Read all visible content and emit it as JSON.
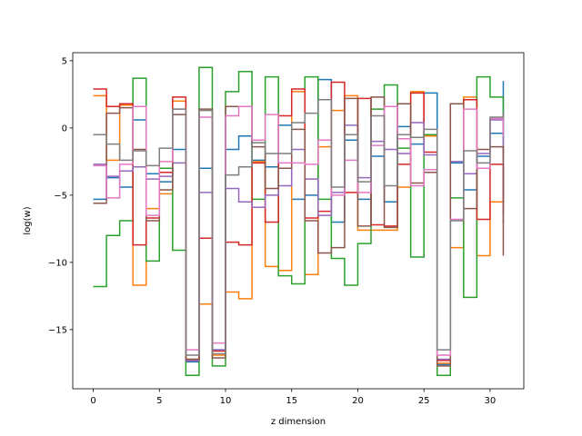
{
  "chart_data": {
    "type": "line",
    "step": "post",
    "title": "",
    "xlabel": "z dimension",
    "ylabel": "log(w)",
    "xlim": [
      -1.55,
      32.55
    ],
    "ylim": [
      -19.4,
      5.6
    ],
    "xticks": [
      0,
      5,
      10,
      15,
      20,
      25,
      30
    ],
    "yticks": [
      5,
      0,
      -5,
      -10,
      -15
    ],
    "ytick_labels": [
      "5",
      "0",
      "−5",
      "−10",
      "−15"
    ],
    "grid": false,
    "legend": "none",
    "x": [
      0,
      1,
      2,
      3,
      4,
      5,
      6,
      7,
      8,
      9,
      10,
      11,
      12,
      13,
      14,
      15,
      16,
      17,
      18,
      19,
      20,
      21,
      22,
      23,
      24,
      25,
      26,
      27,
      28,
      29,
      30,
      31
    ],
    "series": [
      {
        "color": "#1f77b4",
        "values": [
          -5.3,
          -3.7,
          -4.4,
          0.6,
          -3.4,
          -4.0,
          -1.6,
          -17.4,
          -3.0,
          -16.5,
          -1.6,
          -0.6,
          -2.4,
          -2.9,
          0.2,
          -5.3,
          -5.0,
          3.6,
          -7.0,
          -0.9,
          -5.3,
          -2.1,
          -5.5,
          0.1,
          -1.2,
          2.6,
          -17.6,
          -2.6,
          -4.6,
          -2.1,
          -0.4,
          3.5
        ]
      },
      {
        "color": "#ff7f0e",
        "values": [
          2.4,
          -2.4,
          1.7,
          -11.7,
          -6.0,
          -4.9,
          2.0,
          -17.2,
          -13.1,
          -16.9,
          -12.2,
          -12.7,
          -2.5,
          -10.3,
          -10.6,
          2.7,
          -10.9,
          -1.4,
          1.3,
          2.4,
          -7.6,
          -7.6,
          -7.6,
          -4.4,
          2.7,
          -0.6,
          -17.5,
          -8.9,
          2.3,
          -9.5,
          -5.5,
          -2.9
        ]
      },
      {
        "color": "#2ca02c",
        "values": [
          -11.8,
          -8.0,
          -6.9,
          3.7,
          -9.9,
          -3.0,
          -9.1,
          -18.4,
          4.5,
          -17.7,
          2.7,
          4.2,
          -5.3,
          3.8,
          -11.0,
          -11.6,
          3.8,
          -5.3,
          -9.7,
          -11.7,
          -8.6,
          1.4,
          3.2,
          -1.5,
          -9.6,
          -0.5,
          -18.4,
          -5.2,
          -12.6,
          3.8,
          2.3,
          -1.9
        ]
      },
      {
        "color": "#d62728",
        "values": [
          2.9,
          1.6,
          1.8,
          -8.7,
          -6.7,
          -3.3,
          2.3,
          -17.3,
          -8.2,
          -16.6,
          -8.5,
          -8.7,
          -2.6,
          -7.0,
          0.9,
          2.9,
          -6.7,
          -6.2,
          3.4,
          -4.8,
          2.2,
          -7.2,
          -7.3,
          -2.7,
          2.6,
          -1.8,
          -17.3,
          1.8,
          2.1,
          -6.8,
          -2.7,
          -6.4
        ]
      },
      {
        "color": "#9467bd",
        "values": [
          -2.7,
          -3.6,
          -3.2,
          -2.9,
          -3.8,
          -3.6,
          -2.6,
          -17.3,
          -4.8,
          -16.5,
          -4.5,
          -5.5,
          -5.9,
          -5.0,
          -4.3,
          -1.6,
          -3.8,
          -6.5,
          -4.8,
          0.2,
          -3.7,
          -1.0,
          -1.6,
          -1.9,
          0.4,
          -2.0,
          -17.2,
          -2.5,
          -3.4,
          -1.9,
          0.6,
          -7.1
        ]
      },
      {
        "color": "#8c564b",
        "values": [
          -5.6,
          1.1,
          1.5,
          -1.6,
          -6.9,
          -4.6,
          1.0,
          -17.2,
          1.4,
          -17.1,
          1.6,
          1.6,
          -1.4,
          -4.5,
          -3.0,
          -0.1,
          -6.9,
          -9.3,
          -8.9,
          2.2,
          -7.3,
          2.3,
          -7.4,
          1.8,
          -4.1,
          -3.3,
          -17.7,
          1.8,
          -6.0,
          -1.6,
          -1.4,
          -9.5
        ]
      },
      {
        "color": "#e377c2",
        "values": [
          -2.8,
          -5.2,
          -2.7,
          1.6,
          -6.5,
          -2.5,
          1.4,
          -16.5,
          0.8,
          -16.0,
          0.9,
          1.6,
          -0.9,
          1.0,
          -2.6,
          -2.6,
          -2.7,
          -0.9,
          -5.0,
          -2.4,
          -4.8,
          -1.3,
          1.6,
          -0.8,
          -4.3,
          -3.1,
          -16.9,
          -6.8,
          1.4,
          -3.0,
          0.7,
          -0.6
        ]
      },
      {
        "color": "#7f7f7f",
        "values": [
          -0.5,
          -1.2,
          -2.4,
          -1.7,
          -2.8,
          -1.5,
          1.4,
          -16.9,
          1.3,
          -16.8,
          -3.5,
          -2.9,
          -1.1,
          -1.9,
          -1.9,
          0.4,
          1.1,
          2.1,
          -4.4,
          -0.5,
          -4.0,
          0.9,
          -4.3,
          -0.5,
          -0.7,
          -0.1,
          -16.5,
          -6.9,
          -1.7,
          -2.6,
          0.8,
          1.2
        ]
      }
    ]
  }
}
